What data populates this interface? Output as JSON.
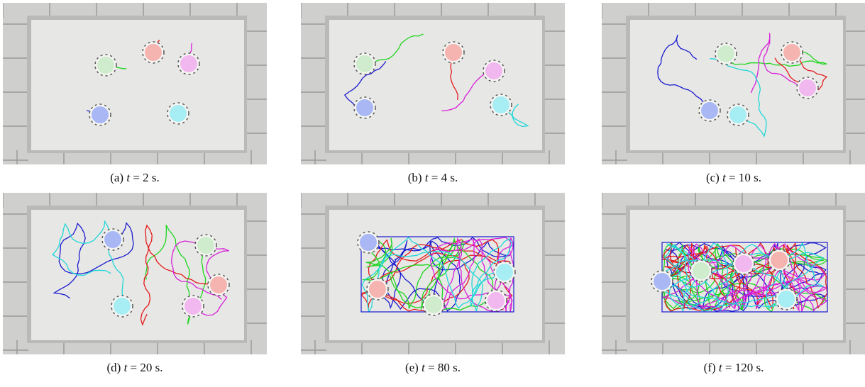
{
  "panels": [
    {
      "label": "(a)",
      "variable": "t",
      "value_text": "= 2 s."
    },
    {
      "label": "(b)",
      "variable": "t",
      "value_text": "= 4 s."
    },
    {
      "label": "(c)",
      "variable": "t",
      "value_text": "= 10 s."
    },
    {
      "label": "(d)",
      "variable": "t",
      "value_text": "= 20 s."
    },
    {
      "label": "(e)",
      "variable": "t",
      "value_text": "= 80 s."
    },
    {
      "label": "(f)",
      "variable": "t",
      "value_text": "= 120 s."
    }
  ]
}
